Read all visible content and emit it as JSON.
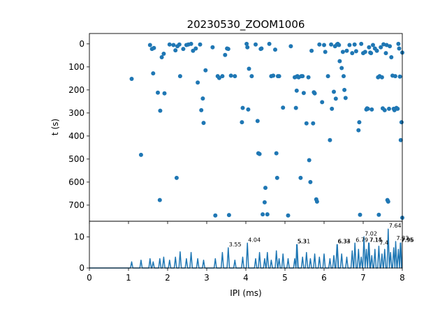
{
  "chart_data": [
    {
      "type": "scatter",
      "title": "20230530_ZOOM1006",
      "xlabel": "",
      "ylabel": "t (s)",
      "xlim": [
        0,
        8
      ],
      "ylim": [
        770,
        -45
      ],
      "y_inverted": true,
      "yticks": [
        0,
        100,
        200,
        300,
        400,
        500,
        600,
        700
      ],
      "show_xticklabels": false,
      "grid": false,
      "marker_color": "#1f77b4",
      "points": [
        [
          1.08,
          152
        ],
        [
          1.32,
          482
        ],
        [
          1.55,
          5
        ],
        [
          1.6,
          22
        ],
        [
          1.65,
          18
        ],
        [
          1.63,
          128
        ],
        [
          1.75,
          212
        ],
        [
          1.81,
          290
        ],
        [
          1.8,
          678
        ],
        [
          1.85,
          58
        ],
        [
          1.9,
          43
        ],
        [
          1.92,
          215
        ],
        [
          2.05,
          3
        ],
        [
          2.15,
          5
        ],
        [
          2.2,
          28
        ],
        [
          2.23,
          582
        ],
        [
          2.25,
          10
        ],
        [
          2.3,
          3
        ],
        [
          2.32,
          140
        ],
        [
          2.4,
          22
        ],
        [
          2.48,
          5
        ],
        [
          2.53,
          3
        ],
        [
          2.6,
          0
        ],
        [
          2.65,
          30
        ],
        [
          2.72,
          20
        ],
        [
          2.77,
          168
        ],
        [
          2.83,
          3
        ],
        [
          2.86,
          288
        ],
        [
          2.9,
          237
        ],
        [
          2.92,
          343
        ],
        [
          2.97,
          115
        ],
        [
          3.15,
          15
        ],
        [
          3.22,
          745
        ],
        [
          3.28,
          140
        ],
        [
          3.32,
          148
        ],
        [
          3.4,
          140
        ],
        [
          3.47,
          48
        ],
        [
          3.52,
          20
        ],
        [
          3.55,
          22
        ],
        [
          3.57,
          743
        ],
        [
          3.62,
          138
        ],
        [
          3.72,
          140
        ],
        [
          3.9,
          340
        ],
        [
          3.92,
          278
        ],
        [
          4.02,
          0
        ],
        [
          4.04,
          15
        ],
        [
          4.06,
          285
        ],
        [
          4.08,
          108
        ],
        [
          4.15,
          140
        ],
        [
          4.25,
          3
        ],
        [
          4.3,
          335
        ],
        [
          4.32,
          475
        ],
        [
          4.35,
          478
        ],
        [
          4.38,
          22
        ],
        [
          4.4,
          20
        ],
        [
          4.43,
          740
        ],
        [
          4.48,
          688
        ],
        [
          4.5,
          625
        ],
        [
          4.55,
          740
        ],
        [
          4.6,
          0
        ],
        [
          4.65,
          140
        ],
        [
          4.7,
          138
        ],
        [
          4.75,
          25
        ],
        [
          4.78,
          475
        ],
        [
          4.8,
          582
        ],
        [
          4.82,
          140
        ],
        [
          4.85,
          140
        ],
        [
          4.95,
          277
        ],
        [
          5.08,
          745
        ],
        [
          5.15,
          10
        ],
        [
          5.25,
          145
        ],
        [
          5.28,
          278
        ],
        [
          5.3,
          142
        ],
        [
          5.3,
          203
        ],
        [
          5.32,
          140
        ],
        [
          5.35,
          145
        ],
        [
          5.4,
          582
        ],
        [
          5.42,
          140
        ],
        [
          5.45,
          140
        ],
        [
          5.48,
          213
        ],
        [
          5.55,
          345
        ],
        [
          5.6,
          145
        ],
        [
          5.62,
          505
        ],
        [
          5.65,
          600
        ],
        [
          5.68,
          30
        ],
        [
          5.72,
          345
        ],
        [
          5.74,
          210
        ],
        [
          5.76,
          215
        ],
        [
          5.8,
          675
        ],
        [
          5.82,
          685
        ],
        [
          5.88,
          3
        ],
        [
          5.95,
          253
        ],
        [
          6.0,
          5
        ],
        [
          6.03,
          35
        ],
        [
          6.1,
          140
        ],
        [
          6.15,
          418
        ],
        [
          6.18,
          3
        ],
        [
          6.2,
          282
        ],
        [
          6.25,
          208
        ],
        [
          6.28,
          10
        ],
        [
          6.3,
          238
        ],
        [
          6.33,
          3
        ],
        [
          6.35,
          0
        ],
        [
          6.38,
          5
        ],
        [
          6.4,
          75
        ],
        [
          6.45,
          105
        ],
        [
          6.48,
          35
        ],
        [
          6.5,
          140
        ],
        [
          6.52,
          200
        ],
        [
          6.55,
          235
        ],
        [
          6.58,
          30
        ],
        [
          6.65,
          5
        ],
        [
          6.72,
          40
        ],
        [
          6.78,
          3
        ],
        [
          6.82,
          32
        ],
        [
          6.88,
          375
        ],
        [
          6.9,
          340
        ],
        [
          6.92,
          742
        ],
        [
          6.95,
          0
        ],
        [
          7.0,
          40
        ],
        [
          7.05,
          35
        ],
        [
          7.08,
          285
        ],
        [
          7.1,
          280
        ],
        [
          7.12,
          282
        ],
        [
          7.15,
          15
        ],
        [
          7.18,
          38
        ],
        [
          7.2,
          40
        ],
        [
          7.22,
          285
        ],
        [
          7.25,
          5
        ],
        [
          7.3,
          20
        ],
        [
          7.35,
          30
        ],
        [
          7.38,
          145
        ],
        [
          7.42,
          140
        ],
        [
          7.4,
          742
        ],
        [
          7.45,
          15
        ],
        [
          7.48,
          145
        ],
        [
          7.5,
          280
        ],
        [
          7.52,
          2
        ],
        [
          7.55,
          288
        ],
        [
          7.58,
          40
        ],
        [
          7.6,
          5
        ],
        [
          7.62,
          678
        ],
        [
          7.64,
          685
        ],
        [
          7.66,
          282
        ],
        [
          7.68,
          10
        ],
        [
          7.72,
          58
        ],
        [
          7.75,
          138
        ],
        [
          7.78,
          282
        ],
        [
          7.8,
          288
        ],
        [
          7.82,
          140
        ],
        [
          7.85,
          278
        ],
        [
          7.88,
          282
        ],
        [
          7.9,
          0
        ],
        [
          7.92,
          20
        ],
        [
          7.94,
          142
        ],
        [
          7.96,
          418
        ],
        [
          7.98,
          340
        ],
        [
          8.0,
          38
        ],
        [
          8.0,
          755
        ]
      ]
    },
    {
      "type": "line",
      "xlabel": "IPI (ms)",
      "ylabel": "",
      "xlim": [
        0,
        8
      ],
      "ylim": [
        0,
        15
      ],
      "xticks": [
        0,
        1,
        2,
        3,
        4,
        5,
        6,
        7,
        8
      ],
      "yticks": [
        0,
        10
      ],
      "grid": false,
      "line_color": "#1f77b4",
      "peaks": [
        [
          1.08,
          2
        ],
        [
          1.32,
          2.5
        ],
        [
          1.55,
          3
        ],
        [
          1.63,
          2
        ],
        [
          1.8,
          3
        ],
        [
          1.9,
          3.5
        ],
        [
          2.05,
          2.5
        ],
        [
          2.2,
          3.5
        ],
        [
          2.32,
          5.2
        ],
        [
          2.48,
          3
        ],
        [
          2.6,
          5
        ],
        [
          2.77,
          3
        ],
        [
          2.92,
          2.5
        ],
        [
          3.22,
          3
        ],
        [
          3.4,
          5
        ],
        [
          3.55,
          6.5
        ],
        [
          3.72,
          2.5
        ],
        [
          3.92,
          3.5
        ],
        [
          4.04,
          8
        ],
        [
          4.25,
          3
        ],
        [
          4.35,
          5
        ],
        [
          4.48,
          3
        ],
        [
          4.55,
          5
        ],
        [
          4.65,
          2.5
        ],
        [
          4.78,
          5.5
        ],
        [
          4.85,
          3
        ],
        [
          4.95,
          4.5
        ],
        [
          5.08,
          3
        ],
        [
          5.25,
          3
        ],
        [
          5.3,
          7.5
        ],
        [
          5.31,
          7.5
        ],
        [
          5.45,
          3.5
        ],
        [
          5.55,
          5
        ],
        [
          5.65,
          3
        ],
        [
          5.76,
          4.5
        ],
        [
          5.88,
          3.5
        ],
        [
          6.0,
          4.5
        ],
        [
          6.15,
          3
        ],
        [
          6.25,
          4
        ],
        [
          6.33,
          7.5
        ],
        [
          6.34,
          7.5
        ],
        [
          6.45,
          4.5
        ],
        [
          6.58,
          3.5
        ],
        [
          6.72,
          5.5
        ],
        [
          6.79,
          8
        ],
        [
          6.88,
          6
        ],
        [
          6.95,
          3.5
        ],
        [
          7.02,
          10
        ],
        [
          7.08,
          6
        ],
        [
          7.14,
          8
        ],
        [
          7.15,
          8
        ],
        [
          7.22,
          4
        ],
        [
          7.3,
          6
        ],
        [
          7.4,
          7
        ],
        [
          7.48,
          4.5
        ],
        [
          7.55,
          6
        ],
        [
          7.64,
          12.5
        ],
        [
          7.7,
          5
        ],
        [
          7.78,
          6.5
        ],
        [
          7.83,
          8.5
        ],
        [
          7.9,
          6
        ],
        [
          7.95,
          8
        ],
        [
          7.96,
          8
        ]
      ],
      "annotations": [
        {
          "x": 3.55,
          "y": 6.5,
          "text": "3.55"
        },
        {
          "x": 4.04,
          "y": 8,
          "text": "4.04"
        },
        {
          "x": 5.3,
          "y": 7.5,
          "text": "5.3"
        },
        {
          "x": 5.31,
          "y": 7.5,
          "text": "5.31"
        },
        {
          "x": 6.33,
          "y": 7.5,
          "text": "6.33"
        },
        {
          "x": 6.34,
          "y": 7.5,
          "text": "6.34"
        },
        {
          "x": 6.79,
          "y": 8,
          "text": "6.79"
        },
        {
          "x": 7.02,
          "y": 10,
          "text": "7.02"
        },
        {
          "x": 7.14,
          "y": 8,
          "text": "7.14"
        },
        {
          "x": 7.15,
          "y": 8,
          "text": "7.15"
        },
        {
          "x": 7.4,
          "y": 7,
          "text": "7.4"
        },
        {
          "x": 7.64,
          "y": 12.5,
          "text": "7.64"
        },
        {
          "x": 7.83,
          "y": 8.5,
          "text": "7.83"
        },
        {
          "x": 7.95,
          "y": 8,
          "text": "7.95"
        },
        {
          "x": 7.96,
          "y": 8,
          "text": "7.96"
        }
      ]
    }
  ]
}
